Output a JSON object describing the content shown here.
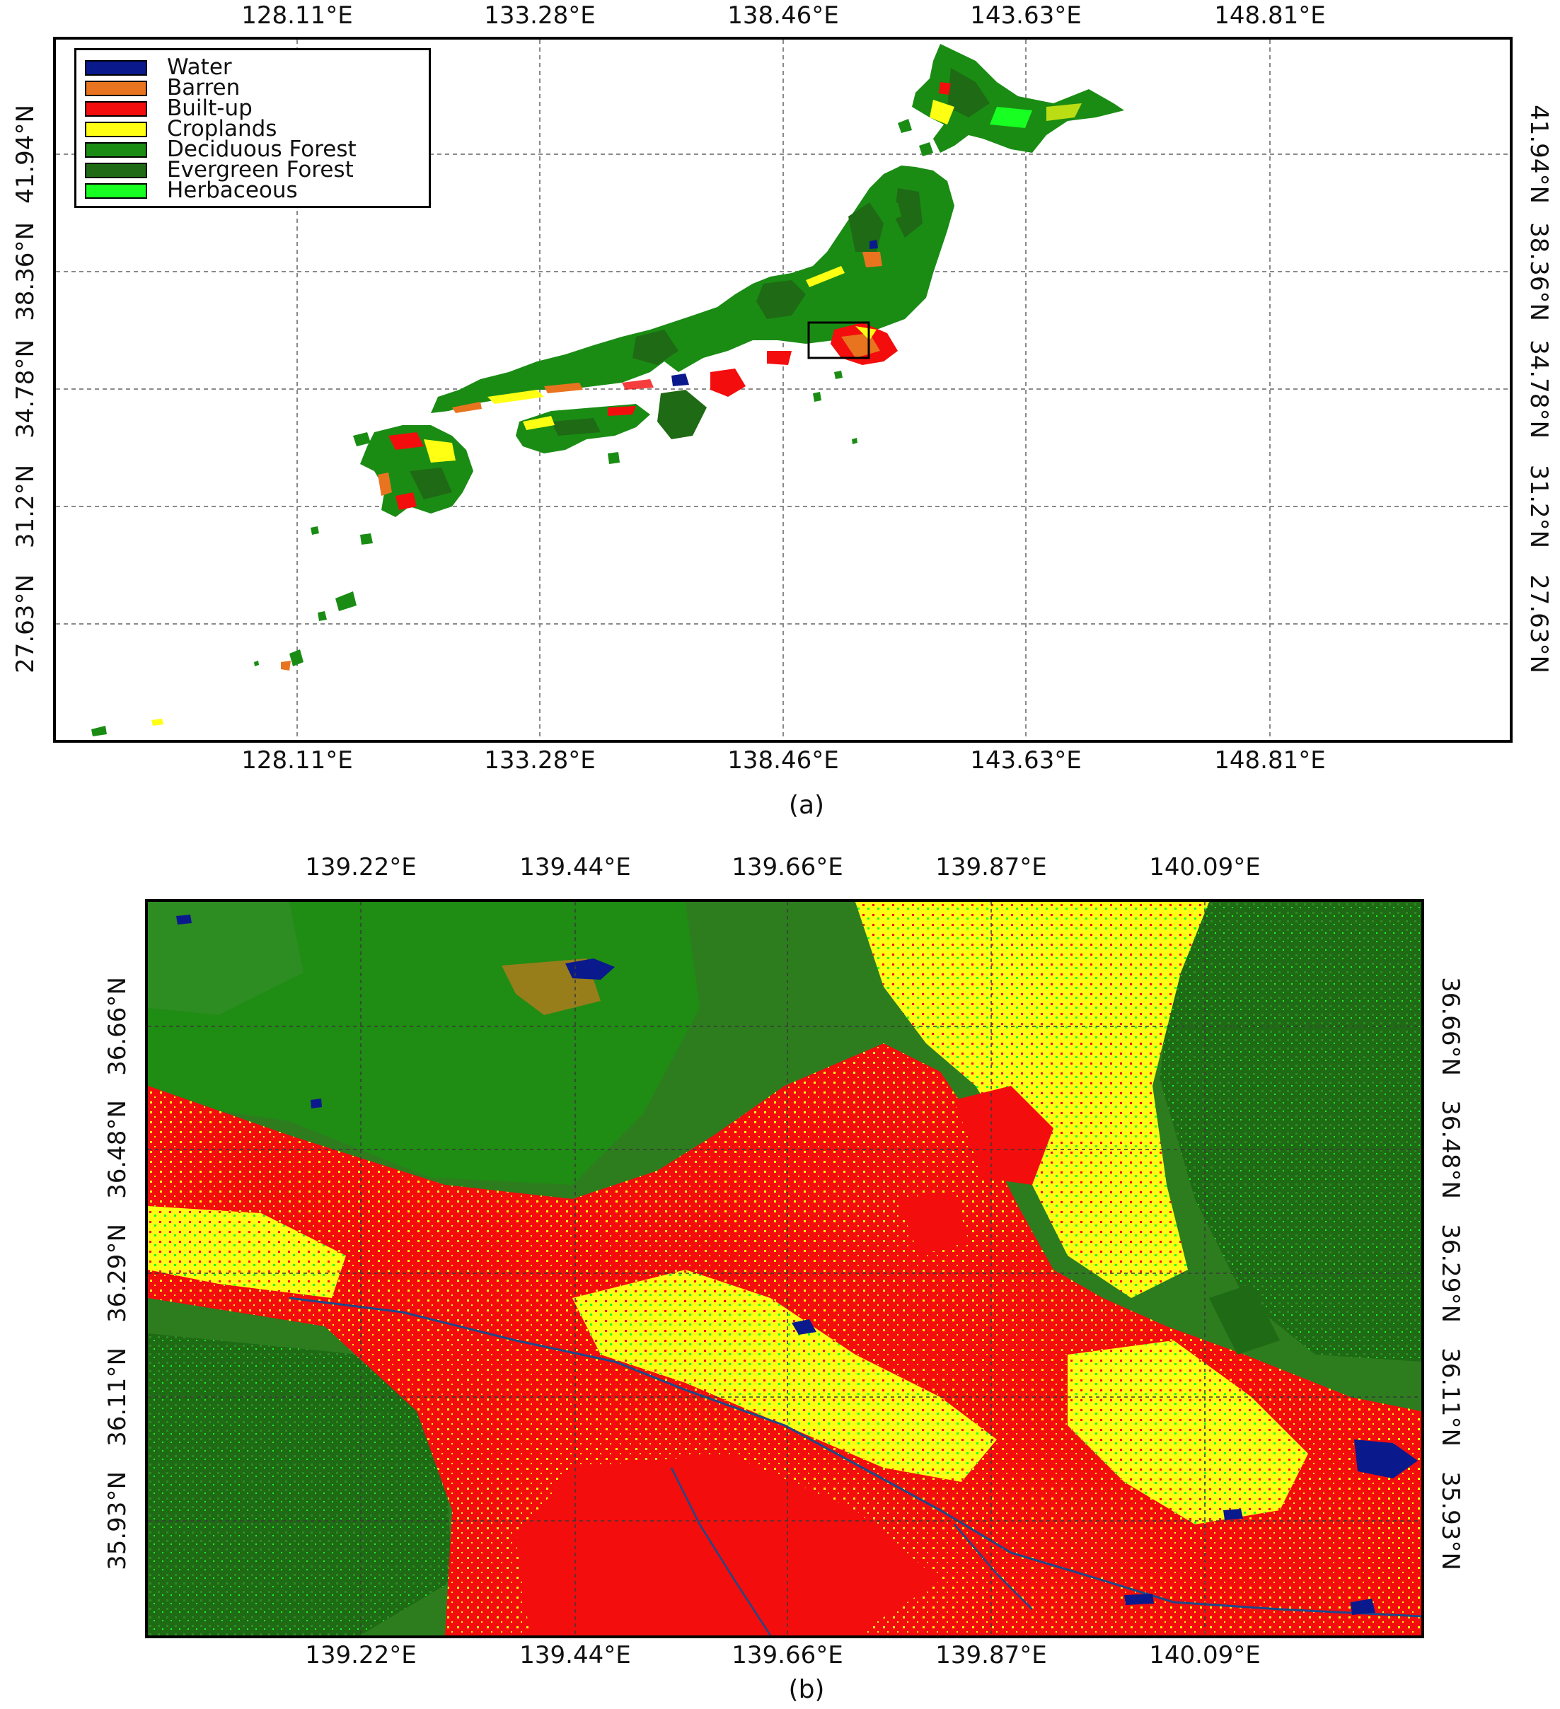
{
  "panel_a": {
    "caption": "(a)",
    "lon_ticks": [
      "128.11°E",
      "133.28°E",
      "138.46°E",
      "143.63°E",
      "148.81°E"
    ],
    "lat_ticks": [
      "41.94°N",
      "38.36°N",
      "34.78°N",
      "31.2°N",
      "27.63°N"
    ],
    "legend": [
      {
        "label": "Water",
        "color": "#0a1a8c"
      },
      {
        "label": "Barren",
        "color": "#e8741f"
      },
      {
        "label": "Built-up",
        "color": "#f30d0d"
      },
      {
        "label": "Croplands",
        "color": "#ffff14"
      },
      {
        "label": "Deciduous Forest",
        "color": "#1a8c14"
      },
      {
        "label": "Evergreen Forest",
        "color": "#1f6a14"
      },
      {
        "label": "Herbaceous",
        "color": "#18ff22"
      }
    ]
  },
  "panel_b": {
    "caption": "(b)",
    "lon_ticks": [
      "139.22°E",
      "139.44°E",
      "139.66°E",
      "139.87°E",
      "140.09°E"
    ],
    "lat_ticks": [
      "36.66°N",
      "36.48°N",
      "36.29°N",
      "36.11°N",
      "35.93°N"
    ]
  },
  "colors": {
    "water": "#0a1a8c",
    "barren": "#e8741f",
    "built_up": "#f30d0d",
    "croplands": "#ffff14",
    "deciduous": "#1a8c14",
    "evergreen": "#1f6a14",
    "herbaceous": "#18ff22"
  }
}
